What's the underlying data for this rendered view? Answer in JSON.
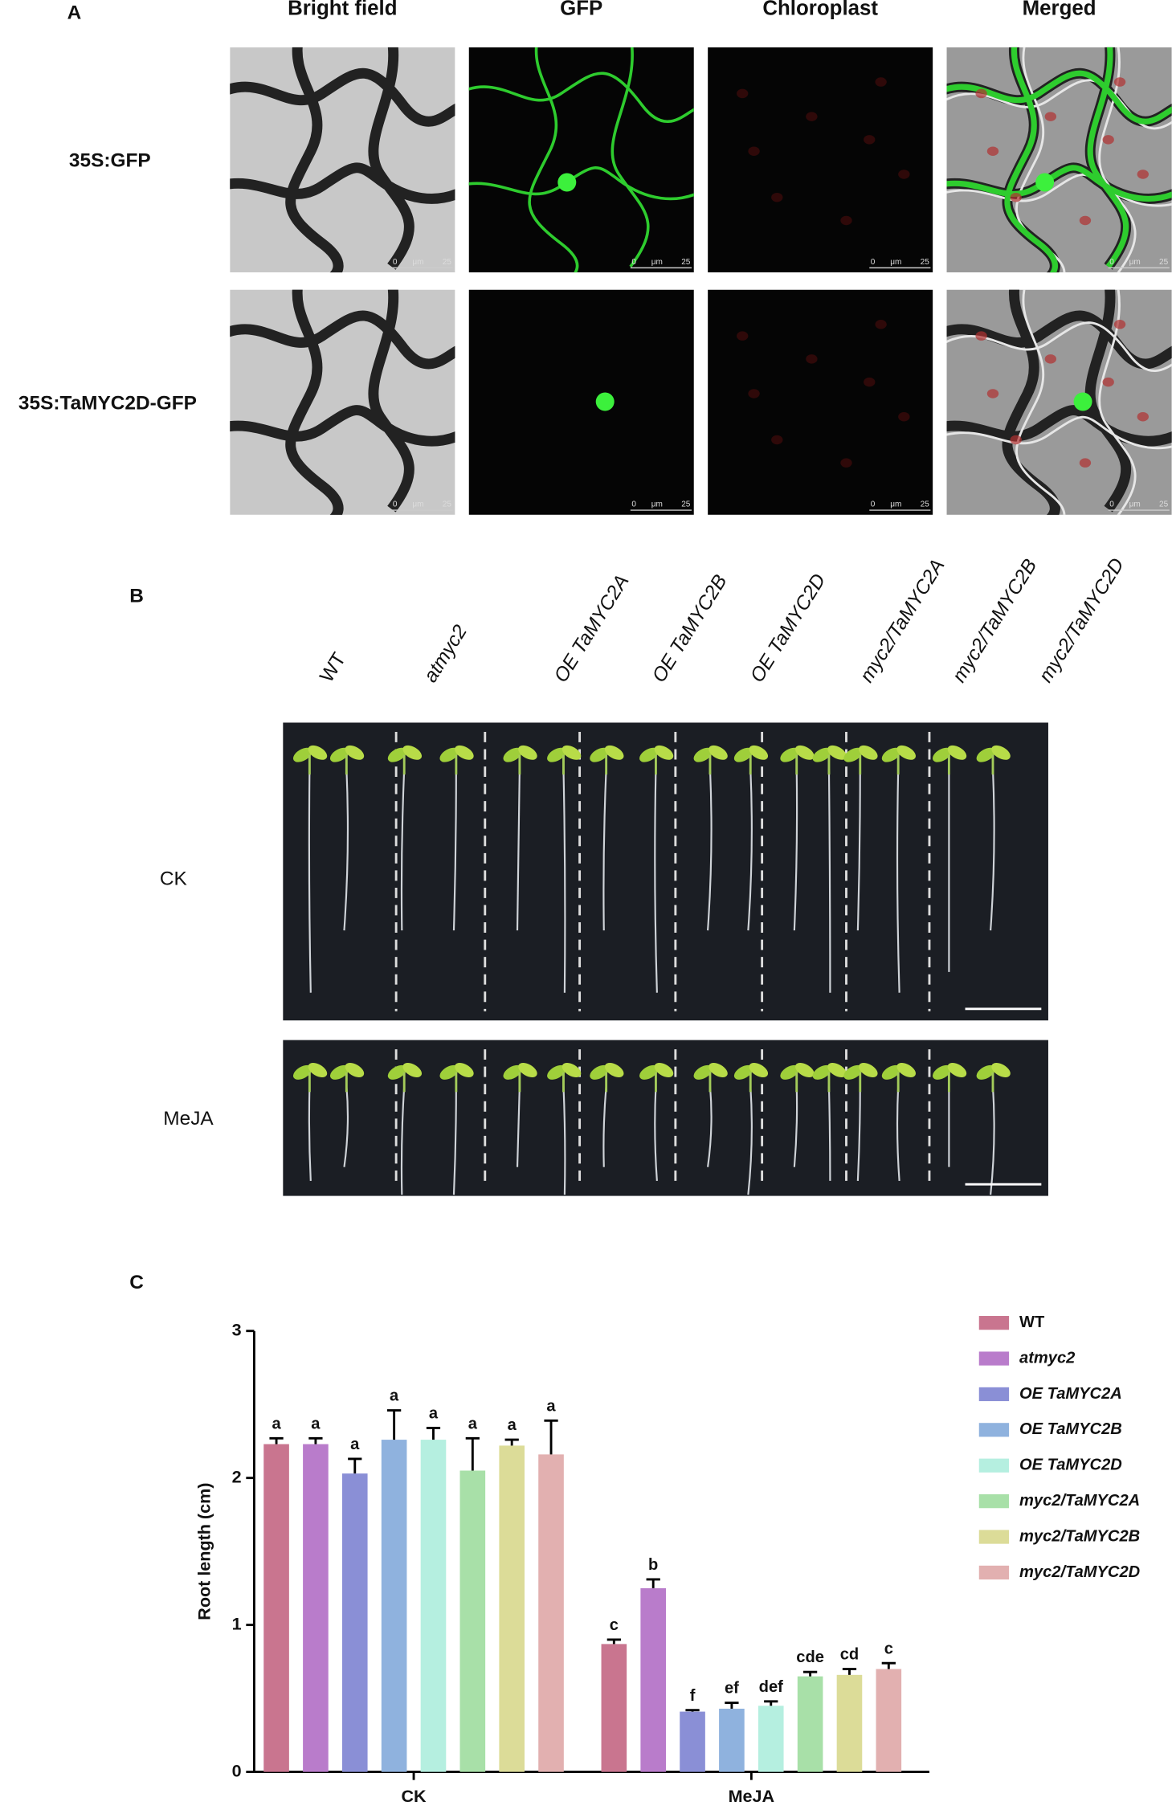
{
  "panel_a": {
    "label": "A",
    "columns": [
      "Bright field",
      "GFP",
      "Chloroplast",
      "Merged"
    ],
    "rows": [
      "35S:GFP",
      "35S:TaMYC2D-GFP"
    ],
    "scale_labels": [
      "0",
      "μm",
      "25"
    ]
  },
  "panel_b": {
    "label": "B",
    "genotypes": [
      "WT",
      "atmyc2",
      "OE TaMYC2A",
      "OE TaMYC2B",
      "OE TaMYC2D",
      "myc2/TaMYC2A",
      "myc2/TaMYC2B",
      "myc2/TaMYC2D"
    ],
    "rows": [
      "CK",
      "MeJA"
    ]
  },
  "chart_data": {
    "type": "bar",
    "label": "C",
    "categories": [
      "CK",
      "MeJA"
    ],
    "ylabel": "Root length (cm)",
    "ylim": [
      0,
      3
    ],
    "yticks": [
      0,
      1,
      2,
      3
    ],
    "legend": "right",
    "series": [
      {
        "name": "WT",
        "color": "#c9758f",
        "values": [
          2.23,
          0.87
        ],
        "errors": [
          0.04,
          0.03
        ],
        "annotations": [
          "a",
          "c"
        ]
      },
      {
        "name": "atmyc2",
        "color": "#b97ccb",
        "values": [
          2.23,
          1.25
        ],
        "errors": [
          0.04,
          0.06
        ],
        "annotations": [
          "a",
          "b"
        ]
      },
      {
        "name": "OE TaMYC2A",
        "color": "#8a8fd6",
        "values": [
          2.03,
          0.41
        ],
        "errors": [
          0.1,
          0.01
        ],
        "annotations": [
          "a",
          "f"
        ]
      },
      {
        "name": "OE TaMYC2B",
        "color": "#8fb2de",
        "values": [
          2.26,
          0.43
        ],
        "errors": [
          0.2,
          0.04
        ],
        "annotations": [
          "a",
          "ef"
        ]
      },
      {
        "name": "OE TaMYC2D",
        "color": "#b5efe0",
        "values": [
          2.26,
          0.45
        ],
        "errors": [
          0.08,
          0.03
        ],
        "annotations": [
          "a",
          "def"
        ]
      },
      {
        "name": "myc2/TaMYC2A",
        "color": "#a8e0a8",
        "values": [
          2.05,
          0.65
        ],
        "errors": [
          0.22,
          0.03
        ],
        "annotations": [
          "a",
          "cde"
        ]
      },
      {
        "name": "myc2/TaMYC2B",
        "color": "#dcdc98",
        "values": [
          2.22,
          0.66
        ],
        "errors": [
          0.04,
          0.04
        ],
        "annotations": [
          "a",
          "cd"
        ]
      },
      {
        "name": "myc2/TaMYC2D",
        "color": "#e2b0b0",
        "values": [
          2.16,
          0.7
        ],
        "errors": [
          0.23,
          0.04
        ],
        "annotations": [
          "a",
          "c"
        ]
      }
    ]
  }
}
